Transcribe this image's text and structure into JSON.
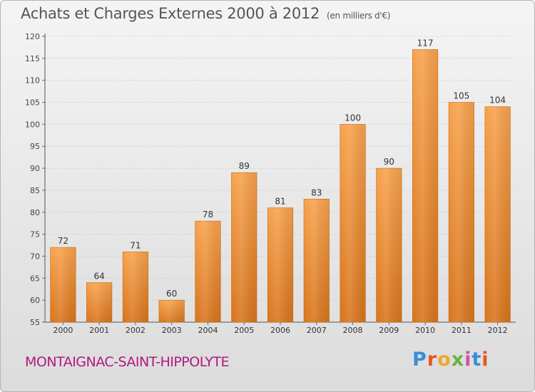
{
  "header": {
    "title": "Achats et Charges Externes 2000 à 2012",
    "unit": "(en milliers d'€)"
  },
  "footer": {
    "commune": "MONTAIGNAC-SAINT-HIPPOLYTE",
    "logo_letters": [
      "P",
      "r",
      "o",
      "x",
      "i",
      "t",
      "i"
    ],
    "logo_colors": [
      "#3a8fd6",
      "#e8561f",
      "#f3a52b",
      "#6cb33f",
      "#d64fa0",
      "#3a8fd6",
      "#e8561f"
    ]
  },
  "chart_data": {
    "type": "bar",
    "categories": [
      "2000",
      "2001",
      "2002",
      "2003",
      "2004",
      "2005",
      "2006",
      "2007",
      "2008",
      "2009",
      "2010",
      "2011",
      "2012"
    ],
    "values": [
      72,
      64,
      71,
      60,
      78,
      89,
      81,
      83,
      100,
      90,
      117,
      105,
      104
    ],
    "title": "Achats et Charges Externes 2000 à 2012",
    "ylim": [
      55,
      120
    ],
    "yticks": [
      55,
      60,
      65,
      70,
      75,
      80,
      85,
      90,
      95,
      100,
      105,
      110,
      115,
      120
    ],
    "grid": true,
    "bar_color": "#f0913a"
  }
}
